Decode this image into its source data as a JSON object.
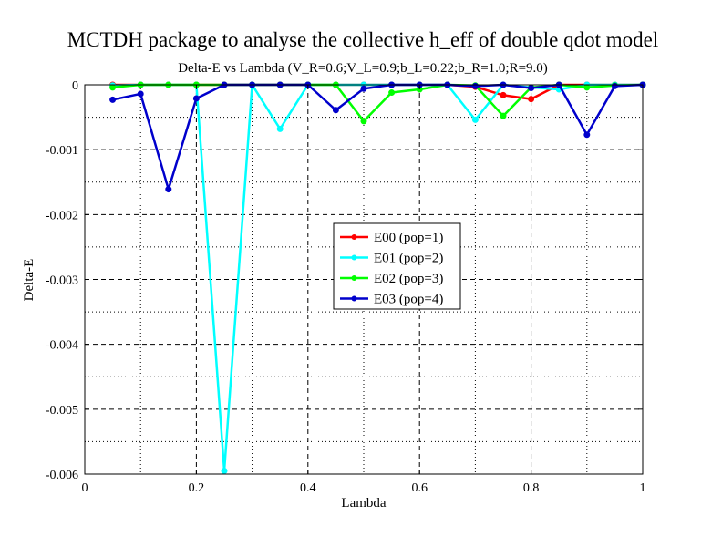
{
  "chart_data": {
    "type": "line",
    "title": "MCTDH package to analyse the collective h_eff of double qdot model",
    "subtitle": "Delta-E vs Lambda (V_R=0.6;V_L=0.9;b_L=0.22;b_R=1.0;R=9.0)",
    "xlabel": "Lambda",
    "ylabel": "Delta-E",
    "xlim": [
      0,
      1
    ],
    "ylim": [
      -0.006,
      0
    ],
    "xticks": [
      0,
      0.2,
      0.4,
      0.6,
      0.8,
      1
    ],
    "xtick_labels": [
      "0",
      "0.2",
      "0.4",
      "0.6",
      "0.8",
      "1"
    ],
    "yticks": [
      0,
      -0.001,
      -0.002,
      -0.003,
      -0.004,
      -0.005,
      -0.006
    ],
    "ytick_labels": [
      "0",
      "-0.001",
      "-0.002",
      "-0.003",
      "-0.004",
      "-0.005",
      "-0.006"
    ],
    "grid": true,
    "legend_position": "center",
    "x": [
      0.05,
      0.1,
      0.15,
      0.2,
      0.25,
      0.3,
      0.35,
      0.4,
      0.45,
      0.5,
      0.55,
      0.6,
      0.65,
      0.7,
      0.75,
      0.8,
      0.85,
      0.9,
      0.95,
      1.0
    ],
    "series": [
      {
        "name": "E00 (pop=1)",
        "color": "#ff0000",
        "values": [
          0,
          0,
          0,
          0,
          0,
          0,
          0,
          0,
          0,
          0,
          0,
          0,
          0,
          -3e-05,
          -0.00016,
          -0.00022,
          0,
          0,
          0,
          0
        ]
      },
      {
        "name": "E01 (pop=2)",
        "color": "#00ffff",
        "values": [
          -1e-05,
          0,
          0,
          0,
          -0.00595,
          0,
          -0.00068,
          0,
          0,
          0,
          0,
          0,
          0,
          -0.00054,
          0,
          -4e-05,
          -7e-05,
          0,
          0,
          0
        ]
      },
      {
        "name": "E02 (pop=3)",
        "color": "#00ff00",
        "values": [
          -4e-05,
          0,
          0,
          0,
          0,
          0,
          0,
          0,
          0,
          -0.00056,
          -0.00012,
          -7e-05,
          0,
          -1e-05,
          -0.00048,
          -4e-05,
          0,
          -4e-05,
          -1e-05,
          0
        ]
      },
      {
        "name": "E03 (pop=4)",
        "color": "#0000cc",
        "values": [
          -0.00023,
          -0.00014,
          -0.00161,
          -0.00021,
          0,
          0,
          0,
          0,
          -0.00039,
          -6e-05,
          0,
          0,
          0,
          -2e-05,
          0,
          -5e-05,
          0,
          -0.00077,
          -2e-05,
          0
        ]
      }
    ]
  }
}
